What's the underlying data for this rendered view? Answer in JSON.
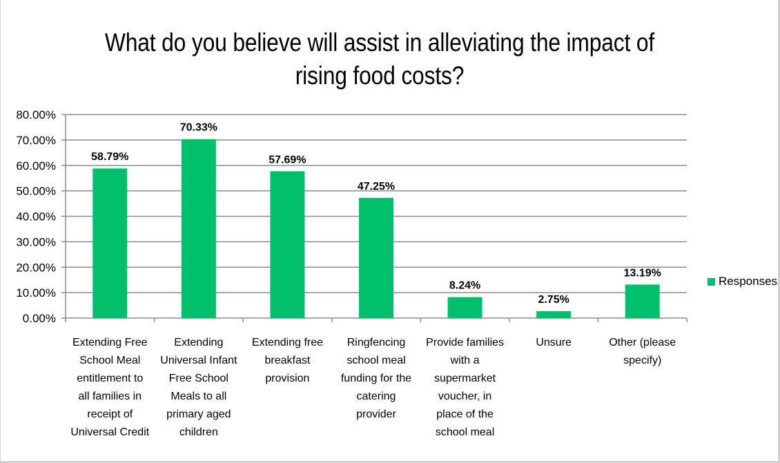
{
  "chart_data": {
    "type": "bar",
    "title": "What do you believe will assist in alleviating the impact of rising food costs?",
    "categories": [
      "Extending Free School Meal entitlement to all families in receipt of Universal Credit",
      "Extending Universal Infant Free School Meals to all primary aged children",
      "Extending free breakfast provision",
      "Ringfencing school meal funding for the catering provider",
      "Provide families with a supermarket voucher, in place of the school meal",
      "Unsure",
      "Other (please specify)"
    ],
    "category_lines": [
      [
        "Extending Free",
        "School Meal",
        "entitlement to",
        "all families in",
        "receipt of",
        "Universal Credit"
      ],
      [
        "Extending",
        "Universal Infant",
        "Free School",
        "Meals to all",
        "primary aged",
        "children"
      ],
      [
        "Extending free",
        "breakfast",
        "provision"
      ],
      [
        "Ringfencing",
        "school meal",
        "funding for the",
        "catering",
        "provider"
      ],
      [
        "Provide families",
        "with a",
        "supermarket",
        "voucher, in",
        "place of the",
        "school meal"
      ],
      [
        "Unsure"
      ],
      [
        "Other (please",
        "specify)"
      ]
    ],
    "series": [
      {
        "name": "Responses",
        "values": [
          58.79,
          70.33,
          57.69,
          47.25,
          8.24,
          2.75,
          13.19
        ],
        "labels": [
          "58.79%",
          "70.33%",
          "57.69%",
          "47.25%",
          "8.24%",
          "2.75%",
          "13.19%"
        ]
      }
    ],
    "ylim": [
      0,
      80
    ],
    "yticks": [
      "0.00%",
      "10.00%",
      "20.00%",
      "30.00%",
      "40.00%",
      "50.00%",
      "60.00%",
      "70.00%",
      "80.00%"
    ],
    "grid": true,
    "legend_position": "right",
    "bar_color": "#00c06b",
    "grid_color": "#8c8c8c"
  }
}
